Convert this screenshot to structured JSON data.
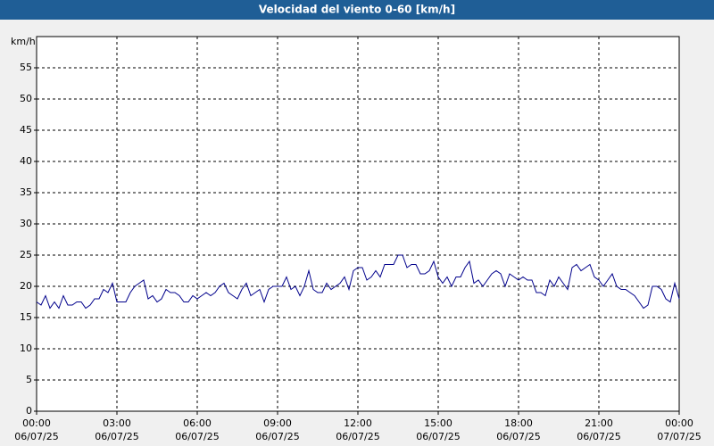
{
  "chart_data": {
    "type": "line",
    "title": "Velocidad del viento 0-60 [km/h]",
    "y_label": "km/h",
    "xlim": [
      0,
      1440
    ],
    "ylim": [
      0,
      60
    ],
    "yticks": [
      0,
      5,
      10,
      15,
      20,
      25,
      30,
      35,
      40,
      45,
      50,
      55
    ],
    "xticks": [
      {
        "value": 0,
        "label": [
          "00:00",
          "06/07/25"
        ]
      },
      {
        "value": 180,
        "label": [
          "03:00",
          "06/07/25"
        ]
      },
      {
        "value": 360,
        "label": [
          "06:00",
          "06/07/25"
        ]
      },
      {
        "value": 540,
        "label": [
          "09:00",
          "06/07/25"
        ]
      },
      {
        "value": 720,
        "label": [
          "12:00",
          "06/07/25"
        ]
      },
      {
        "value": 900,
        "label": [
          "15:00",
          "06/07/25"
        ]
      },
      {
        "value": 1080,
        "label": [
          "18:00",
          "06/07/25"
        ]
      },
      {
        "value": 1260,
        "label": [
          "21:00",
          "06/07/25"
        ]
      },
      {
        "value": 1440,
        "label": [
          "00:00",
          "07/07/25"
        ]
      }
    ],
    "grid": true,
    "x": [
      0,
      10,
      20,
      30,
      40,
      50,
      60,
      70,
      80,
      90,
      100,
      110,
      120,
      130,
      140,
      150,
      160,
      170,
      180,
      190,
      200,
      210,
      220,
      230,
      240,
      250,
      260,
      270,
      280,
      290,
      300,
      310,
      320,
      330,
      340,
      350,
      360,
      370,
      380,
      390,
      400,
      410,
      420,
      430,
      440,
      450,
      460,
      470,
      480,
      490,
      500,
      510,
      520,
      530,
      540,
      550,
      560,
      570,
      580,
      590,
      600,
      610,
      620,
      630,
      640,
      650,
      660,
      670,
      680,
      690,
      700,
      710,
      720,
      730,
      740,
      750,
      760,
      770,
      780,
      790,
      800,
      810,
      820,
      830,
      840,
      850,
      860,
      870,
      880,
      890,
      900,
      910,
      920,
      930,
      940,
      950,
      960,
      970,
      980,
      990,
      1000,
      1010,
      1020,
      1030,
      1040,
      1050,
      1060,
      1070,
      1080,
      1090,
      1100,
      1110,
      1120,
      1130,
      1140,
      1150,
      1160,
      1170,
      1180,
      1190,
      1200,
      1210,
      1220,
      1230,
      1240,
      1250,
      1260,
      1270,
      1280,
      1290,
      1300,
      1310,
      1320,
      1330,
      1340,
      1350,
      1360,
      1370,
      1380,
      1390,
      1400,
      1410,
      1420,
      1430,
      1440
    ],
    "series": [
      {
        "name": "Velocidad del viento",
        "color": "#00008b",
        "values": [
          17.5,
          17,
          18.5,
          16.5,
          17.5,
          16.5,
          18.5,
          17,
          17,
          17.5,
          17.5,
          16.5,
          17,
          18,
          18,
          19.5,
          19,
          20.5,
          17.5,
          17.5,
          17.5,
          19,
          20,
          20.5,
          21,
          18,
          18.5,
          17.5,
          18,
          19.5,
          19,
          19,
          18.5,
          17.5,
          17.5,
          18.5,
          18,
          18.5,
          19,
          18.5,
          19,
          20,
          20.5,
          19,
          18.5,
          18,
          19.5,
          20.5,
          18.5,
          19,
          19.5,
          17.5,
          19.5,
          20,
          20,
          20,
          21.5,
          19.5,
          20,
          18.5,
          20,
          22.5,
          19.5,
          19,
          19,
          20.5,
          19.5,
          20,
          20.5,
          21.5,
          19.5,
          22.5,
          23,
          23,
          21,
          21.5,
          22.5,
          21.5,
          23.5,
          23.5,
          23.5,
          25,
          25,
          23,
          23.5,
          23.5,
          22,
          22,
          22.5,
          24,
          21.5,
          20.5,
          21.5,
          20,
          21.5,
          21.5,
          23,
          24,
          20.5,
          21,
          20,
          21,
          22,
          22.5,
          22,
          20,
          22,
          21.5,
          21,
          21.5,
          21,
          21,
          19,
          19,
          18.5,
          21,
          20,
          21.5,
          20.5,
          19.5,
          23,
          23.5,
          22.5,
          23,
          23.5,
          21.5,
          21,
          20,
          21,
          22,
          20,
          19.5,
          19.5,
          19,
          18.5,
          17.5,
          16.5,
          17,
          20,
          20,
          19.5,
          18,
          17.5,
          20.5,
          18
        ]
      }
    ]
  }
}
